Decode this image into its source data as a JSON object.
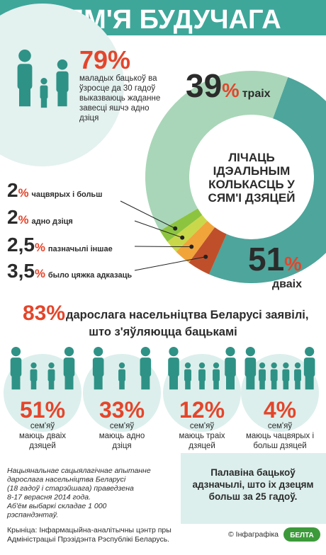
{
  "header": {
    "title": "СЯМ'Я БУДУЧАГА"
  },
  "intro": {
    "value": "79%",
    "lines": [
      "маладых бацькоў ва",
      "ўзросце да 30 гадоў",
      "выказваюць жаданне",
      "завесці яшчэ адно",
      "дзіця"
    ]
  },
  "chart_data": {
    "type": "donut",
    "center_lines": [
      "ЛІЧАЦЬ",
      "ІДЭАЛЬНЫМ",
      "КОЛЬКАСЦЬ У",
      "СЯМ'І ДЗЯЦЕЙ"
    ],
    "unit": "%",
    "categories": [
      "дваіх",
      "было цяжка адказаць",
      "пазначылі іншае",
      "адно дзіця",
      "чацвярых і больш",
      "траіх"
    ],
    "values": [
      51,
      3.5,
      2.5,
      2,
      2,
      39
    ],
    "value_labels": [
      "51",
      "3,5",
      "2,5",
      "2",
      "2",
      "39"
    ],
    "colors": [
      "#4ea59b",
      "#bf4f2b",
      "#f0a43a",
      "#c9d84a",
      "#8cc43f",
      "#a9d6b8"
    ]
  },
  "parents": {
    "value": "83%",
    "lines": [
      "дарослага насельніцтва Беларусі заявілі,",
      "што з'яўляюцца бацькамі"
    ]
  },
  "families": [
    {
      "value": "51%",
      "lines": [
        "сем'яў",
        "маюць дваіх",
        "дзяцей"
      ]
    },
    {
      "value": "33%",
      "lines": [
        "сем'яў",
        "маюць адно",
        "дзіця"
      ]
    },
    {
      "value": "12%",
      "lines": [
        "сем'яў",
        "маюць траіх",
        "дзяцей"
      ]
    },
    {
      "value": "4%",
      "lines": [
        "сем'яў",
        "маюць чацвярых і",
        "больш дзяцей"
      ]
    }
  ],
  "note": [
    "Нацыянальнае сацыялагічнае апытанне",
    "дарослага насельніцтва Беларусі",
    "(18 гадоў і старэйшага) праведзена",
    "8-17 верасня 2014 года.",
    "Аб'ём выбаркі складае 1 000",
    "рэспандэнтаў."
  ],
  "highlight": [
    "Палавіна бацькоў",
    "адзначылі, што іх дзецям",
    "больш за 25 гадоў."
  ],
  "source": [
    "Крыніца: Інфармацыйна-аналітычны цэнтр пры",
    "Адміністрацыі Прэзідэнта Рэспублікі Беларусь."
  ],
  "credit": "© Інфаграфіка",
  "logo": "БЕЛТА"
}
